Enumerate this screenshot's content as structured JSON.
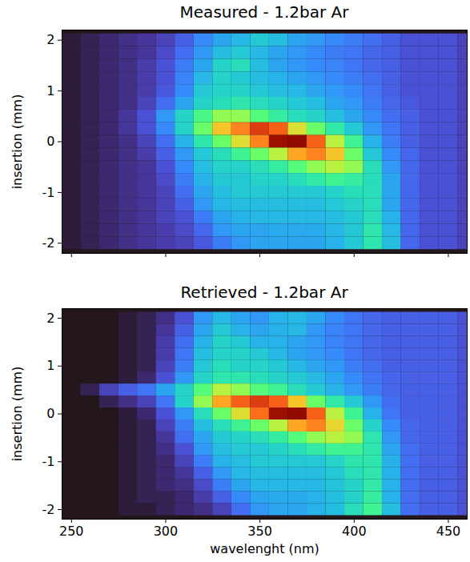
{
  "chart_data": [
    {
      "type": "heatmap",
      "title": "Measured - 1.2bar Ar",
      "ylabel": "insertion (mm)",
      "xlim": [
        245,
        460
      ],
      "ylim": [
        -2.2,
        2.2
      ],
      "xticks": [
        250,
        300,
        350,
        400,
        450
      ],
      "yticks": [
        -2,
        -1,
        0,
        1,
        2
      ],
      "tick_labels": "y",
      "x": [
        250,
        260,
        270,
        280,
        290,
        300,
        310,
        320,
        330,
        340,
        350,
        360,
        370,
        380,
        390,
        400,
        410,
        420,
        430,
        440,
        450,
        460
      ],
      "y": [
        2,
        1.75,
        1.5,
        1.25,
        1,
        0.75,
        0.5,
        0.25,
        0,
        -0.25,
        -0.5,
        -0.75,
        -1,
        -1.25,
        -1.5,
        -1.75,
        -2
      ],
      "z": [
        [
          0.02,
          0.03,
          0.04,
          0.05,
          0.06,
          0.08,
          0.12,
          0.18,
          0.22,
          0.25,
          0.28,
          0.26,
          0.22,
          0.2,
          0.18,
          0.16,
          0.14,
          0.12,
          0.1,
          0.1,
          0.1,
          0.08
        ],
        [
          0.02,
          0.03,
          0.04,
          0.05,
          0.06,
          0.09,
          0.14,
          0.2,
          0.26,
          0.28,
          0.25,
          0.22,
          0.2,
          0.18,
          0.16,
          0.15,
          0.13,
          0.12,
          0.1,
          0.1,
          0.1,
          0.08
        ],
        [
          0.02,
          0.03,
          0.04,
          0.05,
          0.07,
          0.1,
          0.16,
          0.22,
          0.3,
          0.32,
          0.26,
          0.22,
          0.2,
          0.18,
          0.17,
          0.15,
          0.13,
          0.12,
          0.1,
          0.1,
          0.1,
          0.08
        ],
        [
          0.02,
          0.03,
          0.04,
          0.05,
          0.07,
          0.1,
          0.17,
          0.25,
          0.3,
          0.28,
          0.26,
          0.24,
          0.22,
          0.2,
          0.18,
          0.16,
          0.14,
          0.12,
          0.1,
          0.1,
          0.1,
          0.08
        ],
        [
          0.02,
          0.03,
          0.04,
          0.05,
          0.07,
          0.11,
          0.18,
          0.28,
          0.3,
          0.3,
          0.28,
          0.26,
          0.25,
          0.22,
          0.2,
          0.18,
          0.15,
          0.12,
          0.1,
          0.1,
          0.1,
          0.08
        ],
        [
          0.02,
          0.03,
          0.04,
          0.05,
          0.08,
          0.14,
          0.22,
          0.3,
          0.32,
          0.34,
          0.32,
          0.3,
          0.28,
          0.26,
          0.22,
          0.2,
          0.16,
          0.13,
          0.11,
          0.1,
          0.1,
          0.08
        ],
        [
          0.02,
          0.03,
          0.04,
          0.06,
          0.1,
          0.2,
          0.3,
          0.4,
          0.5,
          0.5,
          0.42,
          0.36,
          0.32,
          0.3,
          0.26,
          0.22,
          0.18,
          0.14,
          0.12,
          0.1,
          0.1,
          0.08
        ],
        [
          0.02,
          0.03,
          0.04,
          0.06,
          0.1,
          0.18,
          0.3,
          0.45,
          0.65,
          0.75,
          0.85,
          0.8,
          0.6,
          0.45,
          0.35,
          0.28,
          0.2,
          0.15,
          0.12,
          0.1,
          0.1,
          0.08
        ],
        [
          0.02,
          0.03,
          0.04,
          0.05,
          0.08,
          0.14,
          0.24,
          0.34,
          0.45,
          0.6,
          0.75,
          0.95,
          1.0,
          0.8,
          0.55,
          0.38,
          0.24,
          0.16,
          0.12,
          0.1,
          0.1,
          0.08
        ],
        [
          0.02,
          0.03,
          0.04,
          0.05,
          0.07,
          0.12,
          0.2,
          0.28,
          0.32,
          0.38,
          0.45,
          0.55,
          0.7,
          0.75,
          0.65,
          0.45,
          0.28,
          0.18,
          0.13,
          0.1,
          0.1,
          0.08
        ],
        [
          0.02,
          0.03,
          0.04,
          0.05,
          0.06,
          0.1,
          0.18,
          0.26,
          0.3,
          0.3,
          0.32,
          0.36,
          0.42,
          0.5,
          0.55,
          0.5,
          0.32,
          0.2,
          0.13,
          0.1,
          0.1,
          0.08
        ],
        [
          0.02,
          0.03,
          0.04,
          0.05,
          0.06,
          0.09,
          0.16,
          0.24,
          0.28,
          0.28,
          0.3,
          0.3,
          0.32,
          0.35,
          0.38,
          0.36,
          0.32,
          0.22,
          0.13,
          0.1,
          0.1,
          0.08
        ],
        [
          0.02,
          0.03,
          0.04,
          0.05,
          0.06,
          0.08,
          0.14,
          0.22,
          0.26,
          0.28,
          0.28,
          0.28,
          0.28,
          0.28,
          0.3,
          0.32,
          0.32,
          0.22,
          0.13,
          0.1,
          0.1,
          0.08
        ],
        [
          0.02,
          0.03,
          0.04,
          0.05,
          0.06,
          0.08,
          0.12,
          0.2,
          0.25,
          0.26,
          0.26,
          0.26,
          0.26,
          0.26,
          0.28,
          0.3,
          0.32,
          0.22,
          0.13,
          0.1,
          0.1,
          0.08
        ],
        [
          0.02,
          0.03,
          0.04,
          0.05,
          0.06,
          0.08,
          0.1,
          0.16,
          0.22,
          0.24,
          0.25,
          0.25,
          0.25,
          0.25,
          0.26,
          0.28,
          0.32,
          0.24,
          0.13,
          0.1,
          0.1,
          0.08
        ],
        [
          0.02,
          0.03,
          0.04,
          0.05,
          0.06,
          0.07,
          0.09,
          0.13,
          0.2,
          0.22,
          0.22,
          0.23,
          0.23,
          0.23,
          0.25,
          0.28,
          0.34,
          0.25,
          0.13,
          0.1,
          0.1,
          0.08
        ],
        [
          0.02,
          0.03,
          0.04,
          0.05,
          0.06,
          0.07,
          0.08,
          0.11,
          0.16,
          0.2,
          0.22,
          0.22,
          0.22,
          0.22,
          0.24,
          0.28,
          0.34,
          0.26,
          0.13,
          0.1,
          0.1,
          0.08
        ]
      ]
    },
    {
      "type": "heatmap",
      "title": "Retrieved - 1.2bar Ar",
      "xlabel": "wavelenght (nm)",
      "ylabel": "insertion (mm)",
      "xlim": [
        245,
        460
      ],
      "ylim": [
        -2.2,
        2.2
      ],
      "xticks": [
        250,
        300,
        350,
        400,
        450
      ],
      "yticks": [
        -2,
        -1,
        0,
        1,
        2
      ],
      "x": [
        250,
        260,
        270,
        280,
        290,
        300,
        310,
        320,
        330,
        340,
        350,
        360,
        370,
        380,
        390,
        400,
        410,
        420,
        430,
        440,
        450,
        460
      ],
      "y": [
        2,
        1.75,
        1.5,
        1.25,
        1,
        0.75,
        0.5,
        0.25,
        0,
        -0.25,
        -0.5,
        -0.75,
        -1,
        -1.25,
        -1.5,
        -1.75,
        -2
      ],
      "z": [
        [
          0.01,
          0.01,
          0.01,
          0.02,
          0.03,
          0.05,
          0.1,
          0.2,
          0.25,
          0.22,
          0.2,
          0.24,
          0.25,
          0.22,
          0.18,
          0.15,
          0.13,
          0.12,
          0.12,
          0.12,
          0.12,
          0.1
        ],
        [
          0.01,
          0.01,
          0.01,
          0.02,
          0.03,
          0.06,
          0.12,
          0.22,
          0.28,
          0.24,
          0.22,
          0.24,
          0.25,
          0.2,
          0.17,
          0.15,
          0.13,
          0.12,
          0.12,
          0.12,
          0.12,
          0.1
        ],
        [
          0.01,
          0.01,
          0.01,
          0.02,
          0.03,
          0.07,
          0.14,
          0.24,
          0.3,
          0.28,
          0.24,
          0.24,
          0.22,
          0.2,
          0.17,
          0.15,
          0.13,
          0.12,
          0.12,
          0.12,
          0.12,
          0.1
        ],
        [
          0.01,
          0.01,
          0.01,
          0.02,
          0.03,
          0.07,
          0.15,
          0.26,
          0.3,
          0.3,
          0.28,
          0.25,
          0.22,
          0.2,
          0.18,
          0.15,
          0.13,
          0.12,
          0.12,
          0.12,
          0.12,
          0.1
        ],
        [
          0.01,
          0.01,
          0.01,
          0.02,
          0.03,
          0.08,
          0.16,
          0.28,
          0.32,
          0.3,
          0.3,
          0.28,
          0.25,
          0.22,
          0.2,
          0.16,
          0.14,
          0.12,
          0.12,
          0.12,
          0.12,
          0.1
        ],
        [
          0.01,
          0.01,
          0.01,
          0.02,
          0.04,
          0.1,
          0.2,
          0.3,
          0.34,
          0.34,
          0.32,
          0.3,
          0.28,
          0.25,
          0.22,
          0.18,
          0.15,
          0.13,
          0.12,
          0.12,
          0.12,
          0.1
        ],
        [
          0.01,
          0.03,
          0.08,
          0.12,
          0.15,
          0.22,
          0.3,
          0.42,
          0.55,
          0.5,
          0.42,
          0.38,
          0.32,
          0.28,
          0.24,
          0.2,
          0.16,
          0.13,
          0.12,
          0.12,
          0.12,
          0.1
        ],
        [
          0.01,
          0.01,
          0.03,
          0.05,
          0.08,
          0.15,
          0.3,
          0.5,
          0.7,
          0.8,
          0.85,
          0.8,
          0.65,
          0.45,
          0.35,
          0.28,
          0.2,
          0.14,
          0.12,
          0.12,
          0.12,
          0.1
        ],
        [
          0.01,
          0.01,
          0.01,
          0.02,
          0.04,
          0.1,
          0.2,
          0.32,
          0.45,
          0.6,
          0.78,
          0.95,
          1.0,
          0.8,
          0.55,
          0.38,
          0.24,
          0.15,
          0.12,
          0.12,
          0.12,
          0.1
        ],
        [
          0.01,
          0.01,
          0.01,
          0.02,
          0.03,
          0.08,
          0.16,
          0.26,
          0.32,
          0.38,
          0.45,
          0.55,
          0.7,
          0.75,
          0.62,
          0.45,
          0.3,
          0.18,
          0.13,
          0.12,
          0.12,
          0.1
        ],
        [
          0.01,
          0.01,
          0.01,
          0.02,
          0.03,
          0.06,
          0.14,
          0.22,
          0.28,
          0.3,
          0.32,
          0.36,
          0.42,
          0.5,
          0.55,
          0.5,
          0.34,
          0.2,
          0.13,
          0.12,
          0.12,
          0.1
        ],
        [
          0.01,
          0.01,
          0.01,
          0.02,
          0.03,
          0.05,
          0.1,
          0.2,
          0.26,
          0.28,
          0.28,
          0.3,
          0.32,
          0.35,
          0.38,
          0.38,
          0.34,
          0.22,
          0.14,
          0.12,
          0.12,
          0.1
        ],
        [
          0.01,
          0.01,
          0.01,
          0.02,
          0.03,
          0.04,
          0.08,
          0.16,
          0.24,
          0.26,
          0.28,
          0.28,
          0.28,
          0.28,
          0.3,
          0.34,
          0.34,
          0.24,
          0.14,
          0.12,
          0.12,
          0.1
        ],
        [
          0.01,
          0.01,
          0.01,
          0.02,
          0.03,
          0.04,
          0.06,
          0.12,
          0.2,
          0.25,
          0.26,
          0.26,
          0.26,
          0.26,
          0.28,
          0.32,
          0.34,
          0.24,
          0.14,
          0.12,
          0.12,
          0.1
        ],
        [
          0.01,
          0.01,
          0.01,
          0.02,
          0.03,
          0.04,
          0.05,
          0.09,
          0.16,
          0.22,
          0.25,
          0.25,
          0.25,
          0.25,
          0.27,
          0.3,
          0.35,
          0.24,
          0.14,
          0.12,
          0.12,
          0.1
        ],
        [
          0.01,
          0.01,
          0.01,
          0.02,
          0.03,
          0.03,
          0.04,
          0.07,
          0.12,
          0.18,
          0.22,
          0.23,
          0.23,
          0.24,
          0.26,
          0.3,
          0.36,
          0.24,
          0.14,
          0.12,
          0.12,
          0.1
        ],
        [
          0.01,
          0.01,
          0.01,
          0.02,
          0.02,
          0.03,
          0.04,
          0.05,
          0.08,
          0.14,
          0.2,
          0.22,
          0.22,
          0.24,
          0.26,
          0.32,
          0.38,
          0.26,
          0.14,
          0.12,
          0.12,
          0.1
        ]
      ]
    }
  ]
}
